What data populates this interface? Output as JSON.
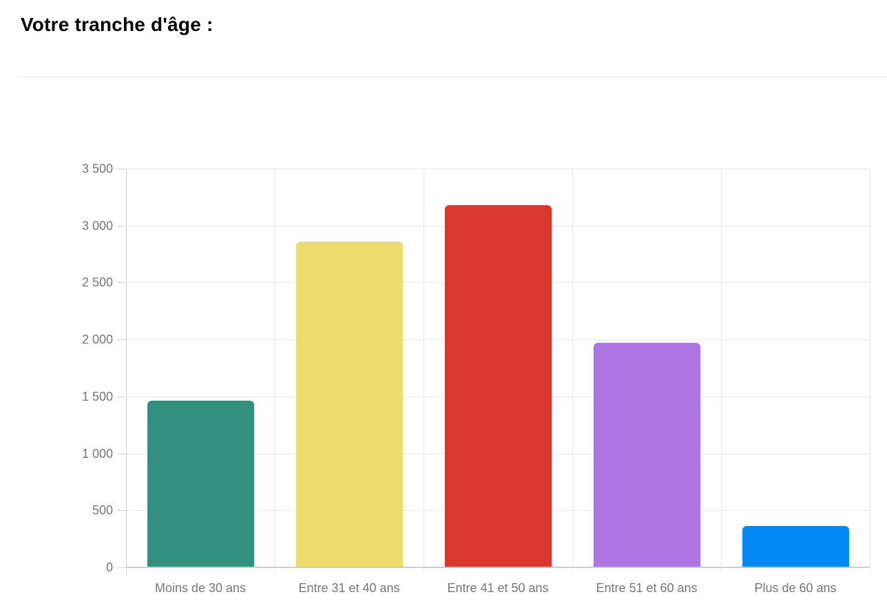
{
  "header": {
    "title": "Votre tranche d'âge :"
  },
  "chart_data": {
    "type": "bar",
    "title": "Votre tranche d'âge :",
    "categories": [
      "Moins de 30 ans",
      "Entre 31 et 40 ans",
      "Entre 41 et 50 ans",
      "Entre 51 et 60 ans",
      "Plus de 60 ans"
    ],
    "values": [
      1460,
      2860,
      3180,
      1970,
      360
    ],
    "bar_colors": [
      "#32917E",
      "#EDDB6D",
      "#DB3731",
      "#AD75E2",
      "#0389F2"
    ],
    "ylim": [
      0,
      3500
    ],
    "ytick_step": 500,
    "ytick_labels": [
      "0",
      "500",
      "1 000",
      "1 500",
      "2 000",
      "2 500",
      "3 000",
      "3 500"
    ],
    "xlabel": "",
    "ylabel": "",
    "grid": true,
    "legend_position": "none",
    "styles": {
      "background": "#ffffff",
      "grid_color": "#e6e6e6",
      "axis_color": "#cccccc",
      "label_color": "#757575",
      "divider_color": "#e8e8e8",
      "title_color": "#000000"
    }
  }
}
